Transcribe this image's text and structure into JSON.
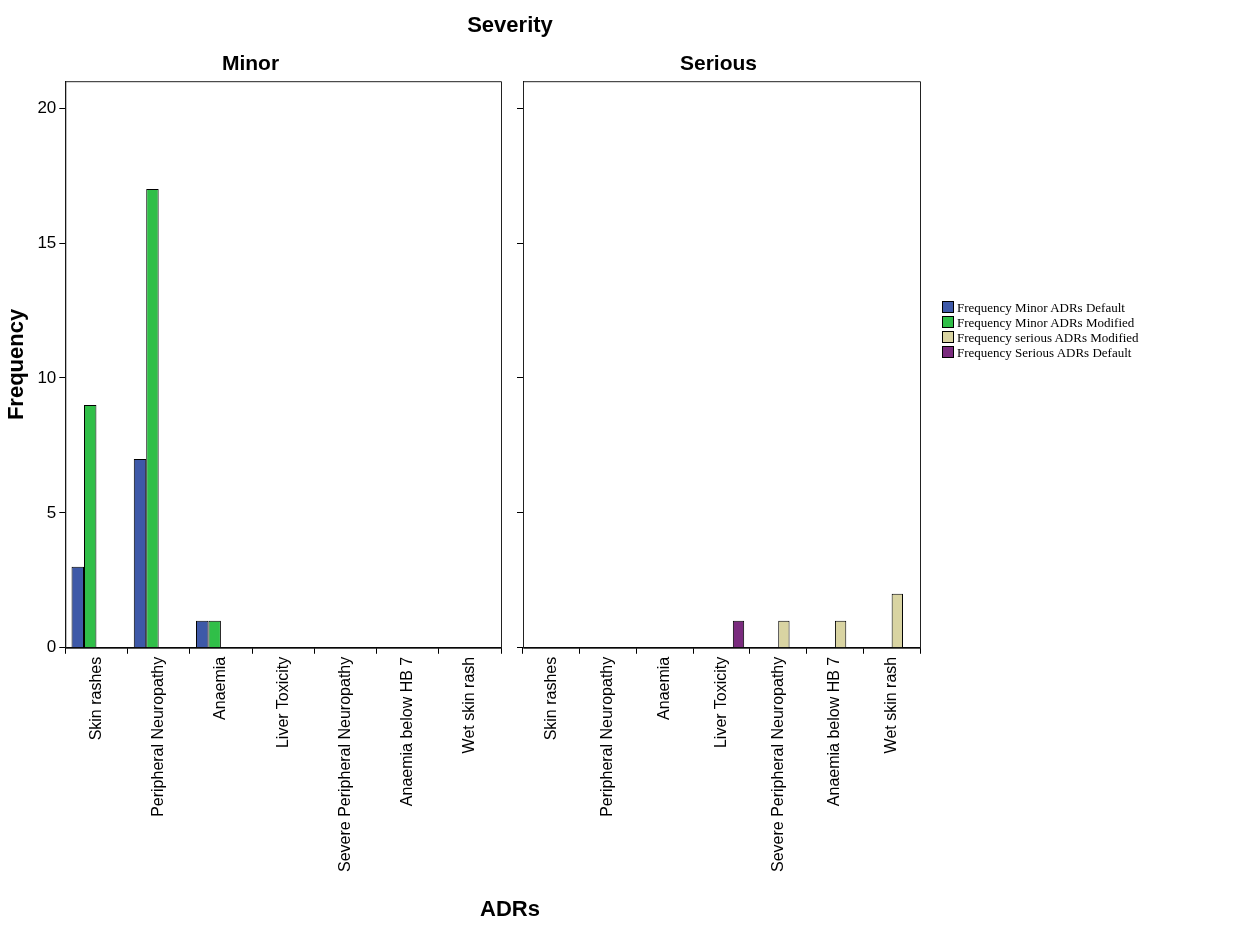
{
  "chart_data": [
    {
      "type": "bar",
      "title": "Minor",
      "annotations": [
        "Severity"
      ],
      "xlabel": "ADRs",
      "ylabel": "Frequency",
      "categories": [
        "Skin rashes",
        "Peripheral Neuropathy",
        "Anaemia",
        "Liver Toxicity",
        "Severe Peripheral Neuropathy",
        "Anaemia below HB 7",
        "Wet skin rash"
      ],
      "series": [
        {
          "color": "#3e59a8",
          "values": [
            3,
            7,
            1,
            null,
            null,
            null,
            null
          ]
        },
        {
          "color": "#30bf48",
          "values": [
            9,
            17,
            1,
            null,
            null,
            null,
            null
          ]
        },
        {
          "color": "#d9d4a2",
          "values": [
            null,
            null,
            null,
            null,
            null,
            null,
            null
          ]
        },
        {
          "color": "#7a2b7e",
          "values": [
            null,
            null,
            null,
            null,
            null,
            null,
            null
          ]
        }
      ],
      "ylim": [
        0,
        21
      ],
      "yticks": [
        0,
        5,
        10,
        15,
        20
      ],
      "legend": false
    },
    {
      "type": "bar",
      "title": "Serious",
      "categories": [
        "Skin rashes",
        "Peripheral Neuropathy",
        "Anaemia",
        "Liver Toxicity",
        "Severe Peripheral Neuropathy",
        "Anaemia below HB 7",
        "Wet skin rash"
      ],
      "series": [
        {
          "name": "Frequency Minor ADRs Default",
          "color": "#3e59a8",
          "values": [
            null,
            null,
            null,
            null,
            null,
            null,
            null
          ]
        },
        {
          "name": "Frequency Minor ADRs Modified",
          "color": "#30bf48",
          "values": [
            null,
            null,
            null,
            null,
            null,
            null,
            null
          ]
        },
        {
          "name": "Frequency serious ADRs Modified",
          "color": "#d9d4a2",
          "values": [
            null,
            null,
            null,
            null,
            1,
            1,
            2
          ]
        },
        {
          "name": "Frequency Serious ADRs Default",
          "color": "#7a2b7e",
          "values": [
            null,
            null,
            null,
            1,
            null,
            null,
            null
          ]
        }
      ],
      "ylim": [
        0,
        21
      ],
      "yticks": [
        0,
        5,
        10,
        15,
        20
      ],
      "tick_labels": "x",
      "legend": "right"
    }
  ]
}
